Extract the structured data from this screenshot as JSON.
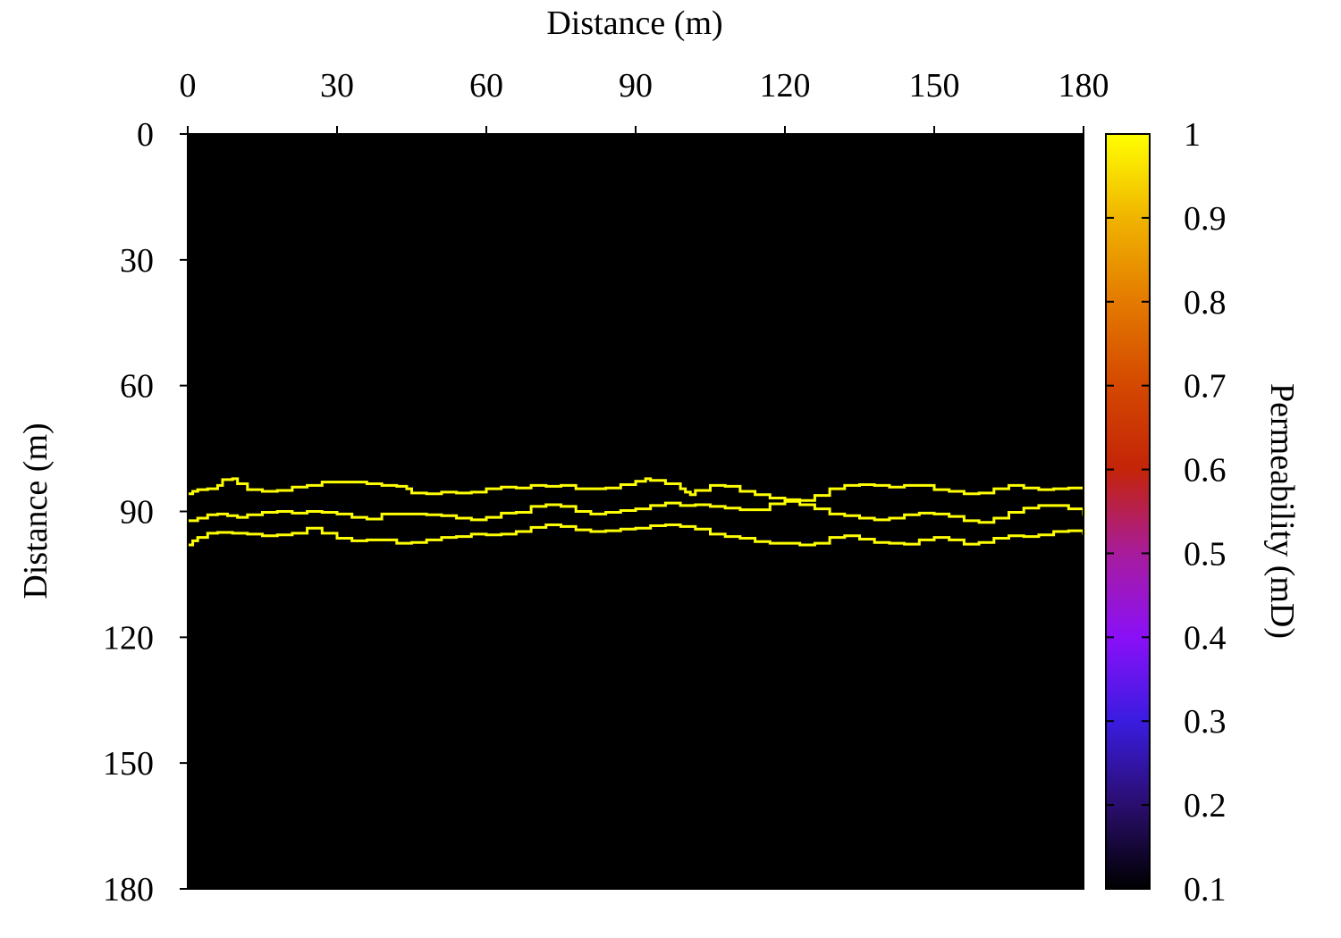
{
  "chart_data": {
    "type": "heatmap",
    "title": "",
    "xlabel": "Distance (m)",
    "ylabel": "Distance (m)",
    "xlim": [
      0,
      180
    ],
    "ylim": [
      0,
      180
    ],
    "y_inverted": true,
    "x_axis_position": "top",
    "x_ticks": [
      0,
      30,
      60,
      90,
      120,
      150,
      180
    ],
    "y_ticks": [
      0,
      30,
      60,
      90,
      120,
      150,
      180
    ],
    "x_tick_labels": [
      "0",
      "30",
      "60",
      "90",
      "120",
      "150",
      "180"
    ],
    "y_tick_labels": [
      "0",
      "30",
      "60",
      "90",
      "120",
      "150",
      "180"
    ],
    "grid": false,
    "background_value": 0.1,
    "colorbar": {
      "label": "Permeability (mD)",
      "range": [
        0.1,
        1
      ],
      "ticks": [
        0.1,
        0.2,
        0.3,
        0.4,
        0.5,
        0.6,
        0.7,
        0.8,
        0.9,
        1
      ],
      "tick_labels": [
        "0.1",
        "0.2",
        "0.3",
        "0.4",
        "0.5",
        "0.6",
        "0.7",
        "0.8",
        "0.9",
        "1"
      ],
      "placement": "right",
      "colormap": [
        {
          "value": 0.1,
          "color": "#000000"
        },
        {
          "value": 0.2,
          "color": "#2a0e6e"
        },
        {
          "value": 0.3,
          "color": "#3a1ce0"
        },
        {
          "value": 0.4,
          "color": "#8a10f8"
        },
        {
          "value": 0.5,
          "color": "#a81c9c"
        },
        {
          "value": 0.6,
          "color": "#c42408"
        },
        {
          "value": 0.7,
          "color": "#d44800"
        },
        {
          "value": 0.8,
          "color": "#e47a00"
        },
        {
          "value": 0.9,
          "color": "#f0b400"
        },
        {
          "value": 1.0,
          "color": "#ffff00"
        }
      ]
    },
    "series": [
      {
        "value": 1,
        "color": "#ffff00",
        "x": [
          0,
          1,
          2,
          4,
          6,
          7,
          9,
          10,
          12,
          15,
          18,
          21,
          24,
          27,
          30,
          33,
          36,
          39,
          42,
          44,
          45,
          48,
          51,
          54,
          57,
          60,
          63,
          66,
          69,
          72,
          75,
          78,
          81,
          84,
          87,
          90,
          92,
          93,
          96,
          99,
          100,
          101,
          102,
          105,
          108,
          111,
          114,
          117,
          120,
          123,
          126,
          129,
          132,
          135,
          138,
          141,
          144,
          147,
          150,
          153,
          156,
          159,
          162,
          165,
          168,
          171,
          174,
          177,
          180
        ],
        "y": [
          85.8,
          85.2,
          84.8,
          84.6,
          83.8,
          82.4,
          82.2,
          83.4,
          84.8,
          85.2,
          85.0,
          84.2,
          83.8,
          83.0,
          83.0,
          83.0,
          83.4,
          83.8,
          84.0,
          84.6,
          85.6,
          85.8,
          85.4,
          85.6,
          85.4,
          84.6,
          84.2,
          84.4,
          83.8,
          84.0,
          83.8,
          84.6,
          84.6,
          84.4,
          83.6,
          82.8,
          82.2,
          82.6,
          83.4,
          84.6,
          85.4,
          86.0,
          85.0,
          83.8,
          84.0,
          85.2,
          86.0,
          86.8,
          87.2,
          87.4,
          86.2,
          84.6,
          83.8,
          83.6,
          83.8,
          84.2,
          83.8,
          83.8,
          84.8,
          85.2,
          85.8,
          85.6,
          84.6,
          83.8,
          84.4,
          84.8,
          84.6,
          84.4,
          84.4
        ]
      },
      {
        "value": 1,
        "color": "#ffff00",
        "x": [
          0,
          2,
          4,
          6,
          8,
          10,
          12,
          15,
          18,
          21,
          24,
          27,
          30,
          33,
          36,
          39,
          42,
          45,
          48,
          51,
          54,
          57,
          60,
          63,
          66,
          69,
          72,
          75,
          78,
          81,
          84,
          87,
          90,
          93,
          96,
          99,
          102,
          105,
          108,
          111,
          114,
          117,
          120,
          123,
          126,
          129,
          132,
          135,
          138,
          141,
          144,
          147,
          150,
          153,
          156,
          159,
          162,
          165,
          168,
          171,
          174,
          177,
          180
        ],
        "y": [
          92.2,
          91.6,
          90.8,
          90.6,
          91.0,
          91.4,
          90.8,
          90.2,
          90.0,
          90.4,
          90.0,
          90.2,
          90.6,
          91.4,
          91.8,
          90.6,
          90.6,
          90.6,
          90.8,
          91.0,
          91.6,
          92.0,
          91.4,
          90.4,
          90.2,
          88.8,
          88.4,
          88.8,
          90.0,
          90.6,
          90.2,
          89.8,
          89.4,
          88.6,
          88.0,
          88.6,
          88.4,
          88.8,
          89.2,
          89.6,
          89.6,
          88.2,
          87.6,
          88.4,
          89.4,
          90.6,
          91.0,
          91.6,
          92.0,
          91.6,
          90.8,
          90.4,
          90.6,
          91.2,
          92.2,
          92.6,
          91.6,
          90.2,
          89.2,
          88.6,
          88.6,
          89.4,
          91.0
        ]
      },
      {
        "value": 1,
        "color": "#ffff00",
        "x": [
          0,
          1,
          2,
          4,
          6,
          9,
          12,
          15,
          18,
          21,
          24,
          27,
          30,
          33,
          36,
          39,
          42,
          45,
          48,
          51,
          54,
          57,
          60,
          63,
          66,
          69,
          72,
          75,
          78,
          81,
          84,
          87,
          90,
          93,
          96,
          99,
          102,
          105,
          108,
          111,
          114,
          117,
          120,
          123,
          126,
          129,
          132,
          135,
          138,
          141,
          144,
          147,
          150,
          153,
          156,
          159,
          162,
          165,
          168,
          171,
          174,
          177,
          180
        ],
        "y": [
          98.0,
          97.0,
          96.2,
          95.2,
          95.0,
          95.2,
          95.4,
          95.8,
          95.6,
          95.2,
          94.0,
          95.2,
          96.4,
          97.0,
          96.8,
          96.8,
          97.6,
          97.4,
          96.8,
          96.2,
          96.0,
          95.4,
          95.6,
          95.4,
          94.8,
          93.8,
          93.2,
          93.6,
          94.4,
          94.8,
          94.6,
          94.2,
          94.0,
          93.4,
          93.2,
          93.6,
          94.2,
          95.4,
          96.0,
          96.4,
          97.2,
          97.6,
          97.6,
          98.0,
          97.6,
          96.2,
          95.8,
          96.6,
          97.4,
          97.6,
          97.8,
          96.8,
          96.2,
          96.8,
          97.8,
          97.4,
          96.4,
          95.8,
          96.0,
          95.6,
          94.8,
          94.6,
          95.6
        ]
      }
    ]
  }
}
